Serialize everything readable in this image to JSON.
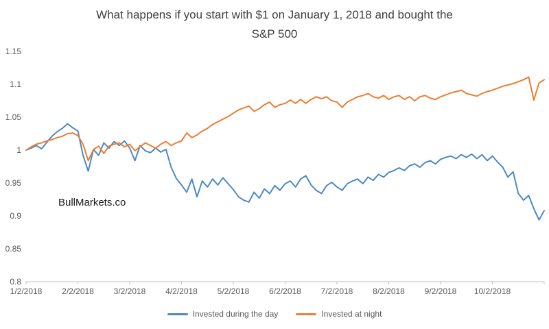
{
  "title": {
    "lines": [
      "What happens if you start with $1 on January 1, 2018 and bought the",
      "S&P 500"
    ]
  },
  "watermark": "BullMarkets.co",
  "legend": [
    {
      "label": "Invested during the day",
      "color": "#4a89c7"
    },
    {
      "label": "Invested at night",
      "color": "#ed7d31"
    }
  ],
  "colors": {
    "axis_line": "#bfbfbf",
    "tick_text": "#595959",
    "title_text": "#3f3f3f",
    "day_series": "#4a89c7",
    "night_series": "#ed7d31",
    "background": "#ffffff"
  },
  "chart_data": {
    "type": "line",
    "title": "What happens if you start with $1 on January 1, 2018 and bought the S&P 500",
    "xlabel": "",
    "ylabel": "",
    "grid": false,
    "legend_position": "bottom",
    "ylim": [
      0.8,
      1.15
    ],
    "y_ticks": [
      0.8,
      0.85,
      0.9,
      0.95,
      1.0,
      1.05,
      1.1,
      1.15
    ],
    "y_tick_labels": [
      "0.8",
      "0.85",
      "0.9",
      "0.95",
      "1",
      "1.05",
      "1.1",
      "1.15"
    ],
    "x_tick_labels": [
      "1/2/2018",
      "2/2/2018",
      "3/2/2018",
      "4/2/2018",
      "5/2/2018",
      "6/2/2018",
      "7/2/2018",
      "8/2/2018",
      "9/2/2018",
      "10/2/2018"
    ],
    "x_axis_note": "values below are sampled evenly from 1/2/2018 (x=0 months) to ~11/1/2018 (x=10 months); tick labels sit at each month start",
    "x_months": {
      "start": 0,
      "end": 10,
      "count": 101
    },
    "series": [
      {
        "name": "Invested during the day",
        "color": "#4a89c7",
        "values": [
          1.0,
          1.003,
          1.007,
          1.002,
          1.012,
          1.021,
          1.028,
          1.033,
          1.04,
          1.034,
          1.029,
          0.992,
          0.968,
          1.001,
          0.992,
          1.011,
          1.003,
          1.013,
          1.007,
          1.014,
          1.003,
          0.984,
          1.007,
          0.999,
          0.996,
          1.003,
          0.997,
          1.001,
          0.974,
          0.957,
          0.947,
          0.936,
          0.956,
          0.929,
          0.953,
          0.944,
          0.956,
          0.947,
          0.958,
          0.949,
          0.94,
          0.929,
          0.924,
          0.921,
          0.936,
          0.927,
          0.941,
          0.934,
          0.946,
          0.939,
          0.949,
          0.953,
          0.944,
          0.956,
          0.961,
          0.947,
          0.939,
          0.934,
          0.946,
          0.951,
          0.944,
          0.939,
          0.949,
          0.953,
          0.956,
          0.949,
          0.959,
          0.954,
          0.963,
          0.959,
          0.966,
          0.969,
          0.973,
          0.969,
          0.976,
          0.979,
          0.974,
          0.981,
          0.984,
          0.979,
          0.986,
          0.989,
          0.991,
          0.987,
          0.993,
          0.989,
          0.994,
          0.987,
          0.993,
          0.984,
          0.991,
          0.982,
          0.974,
          0.959,
          0.967,
          0.934,
          0.924,
          0.931,
          0.911,
          0.894,
          0.908
        ]
      },
      {
        "name": "Invested at night",
        "color": "#ed7d31",
        "values": [
          1.0,
          1.005,
          1.009,
          1.011,
          1.014,
          1.016,
          1.019,
          1.021,
          1.025,
          1.026,
          1.022,
          1.009,
          0.984,
          1.001,
          1.006,
          0.995,
          1.006,
          1.009,
          1.011,
          1.005,
          1.009,
          0.999,
          1.005,
          1.011,
          1.007,
          1.003,
          1.009,
          1.013,
          1.007,
          1.011,
          1.014,
          1.026,
          1.019,
          1.023,
          1.029,
          1.033,
          1.039,
          1.043,
          1.047,
          1.051,
          1.056,
          1.061,
          1.064,
          1.067,
          1.059,
          1.063,
          1.069,
          1.073,
          1.065,
          1.069,
          1.071,
          1.076,
          1.071,
          1.077,
          1.071,
          1.077,
          1.081,
          1.078,
          1.081,
          1.075,
          1.073,
          1.065,
          1.073,
          1.077,
          1.081,
          1.083,
          1.086,
          1.081,
          1.079,
          1.083,
          1.077,
          1.081,
          1.083,
          1.077,
          1.081,
          1.075,
          1.081,
          1.083,
          1.079,
          1.077,
          1.081,
          1.084,
          1.087,
          1.089,
          1.091,
          1.086,
          1.084,
          1.082,
          1.086,
          1.089,
          1.091,
          1.094,
          1.097,
          1.099,
          1.101,
          1.104,
          1.107,
          1.111,
          1.076,
          1.102,
          1.107
        ]
      }
    ]
  }
}
